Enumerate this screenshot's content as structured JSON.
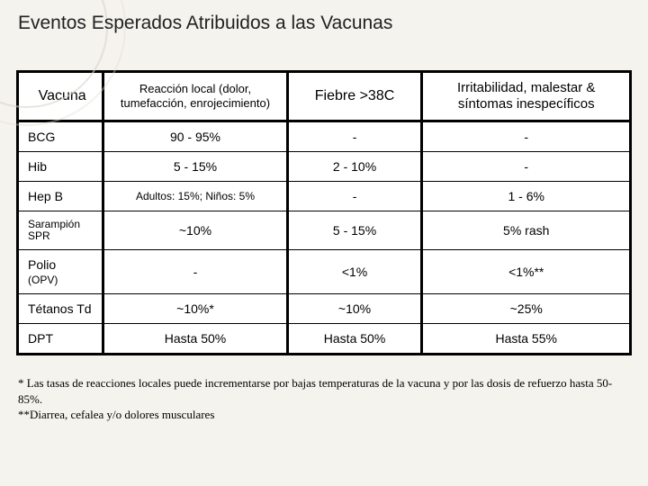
{
  "title": "Eventos Esperados Atribuidos a las Vacunas",
  "headers": {
    "vacuna": "Vacuna",
    "local": "Reacción local (dolor, tumefacción, enrojecimiento)",
    "fiebre": "Fiebre >38C",
    "irrit": "Irritabilidad, malestar & síntomas inespecíficos"
  },
  "rows": [
    {
      "vacuna": "BCG",
      "local": "90 - 95%",
      "fiebre": "-",
      "irrit": "-"
    },
    {
      "vacuna": "Hib",
      "local": "5 - 15%",
      "fiebre": "2 - 10%",
      "irrit": "-"
    },
    {
      "vacuna": "Hep B",
      "local": "Adultos: 15%; Niños: 5%",
      "fiebre": "-",
      "irrit": "1 - 6%"
    },
    {
      "vacuna": "Sarampión SPR",
      "local": "~10%",
      "fiebre": "5 - 15%",
      "irrit": "5% rash"
    },
    {
      "vacuna": "Polio (OPV)",
      "local": "-",
      "fiebre": "<1%",
      "irrit": "<1%**"
    },
    {
      "vacuna": "Tétanos Td",
      "local": "~10%*",
      "fiebre": "~10%",
      "irrit": "~25%"
    },
    {
      "vacuna": "DPT",
      "local": "Hasta  50%",
      "fiebre": "Hasta  50%",
      "irrit": "Hasta 55%"
    }
  ],
  "footnotes": {
    "line1": "* Las tasas de reacciones locales puede incrementarse por bajas temperaturas de la vacuna y por las dosis de refuerzo hasta 50-85%.",
    "line2": "**Diarrea, cefalea y/o dolores musculares"
  },
  "colors": {
    "background": "#f5f3ee",
    "table_border": "#000000",
    "text": "#000000"
  }
}
